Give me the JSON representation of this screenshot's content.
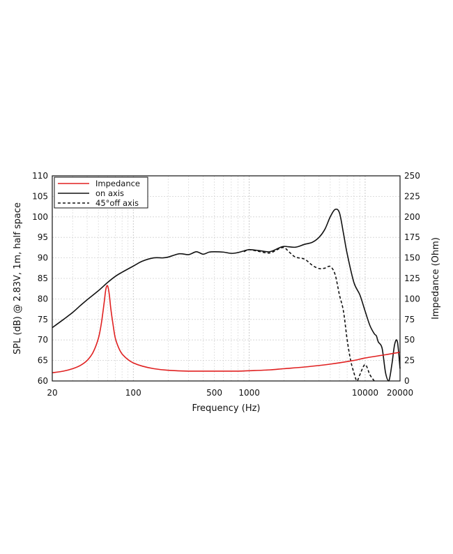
{
  "chart_data": {
    "type": "line",
    "title": "",
    "xlabel": "Frequency (Hz)",
    "ylabel_left": "SPL (dB) @ 2.83V, 1m, half space",
    "ylabel_right": "Impedance (Ohm)",
    "x_scale": "log",
    "xlim": [
      20,
      20000
    ],
    "ylim_left": [
      60,
      110
    ],
    "ylim_right": [
      0,
      250
    ],
    "x_tick_labels": [
      "20",
      "100",
      "500",
      "1000",
      "10000",
      "20000"
    ],
    "y_left_tick_labels": [
      "60",
      "65",
      "70",
      "75",
      "80",
      "85",
      "90",
      "95",
      "100",
      "105",
      "110"
    ],
    "y_right_tick_labels": [
      "0",
      "25",
      "50",
      "75",
      "100",
      "125",
      "150",
      "175",
      "200",
      "225",
      "250"
    ],
    "grid": true,
    "legend_position": "top-left",
    "series": [
      {
        "name": "Impedance",
        "axis": "right",
        "color": "#e02020",
        "style": "solid",
        "x": [
          20,
          25,
          30,
          35,
          40,
          45,
          50,
          53,
          56,
          58,
          60,
          62,
          64,
          67,
          70,
          75,
          80,
          90,
          100,
          120,
          150,
          200,
          300,
          500,
          800,
          1000,
          1500,
          2000,
          3000,
          5000,
          8000,
          10000,
          15000,
          20000
        ],
        "values": [
          10,
          12,
          15,
          19,
          25,
          35,
          52,
          70,
          95,
          112,
          116,
          106,
          88,
          68,
          52,
          40,
          33,
          26,
          22,
          18,
          15,
          13,
          12,
          12,
          12,
          12.5,
          13.5,
          15,
          17,
          20.5,
          25,
          28,
          32,
          35
        ]
      },
      {
        "name": "on axis",
        "axis": "left",
        "color": "#111111",
        "style": "solid",
        "x": [
          20,
          25,
          30,
          35,
          40,
          50,
          60,
          70,
          80,
          100,
          120,
          150,
          180,
          200,
          250,
          300,
          350,
          400,
          450,
          500,
          600,
          700,
          800,
          900,
          1000,
          1200,
          1500,
          1800,
          2000,
          2500,
          3000,
          3500,
          4000,
          4500,
          5000,
          5500,
          6000,
          6500,
          7000,
          8000,
          9000,
          10000,
          11000,
          12000,
          12500,
          13000,
          14000,
          15000,
          16000,
          17000,
          18000,
          19000,
          20000
        ],
        "values": [
          73,
          75,
          76.7,
          78.4,
          79.8,
          82,
          84,
          85.5,
          86.5,
          88,
          89.2,
          90,
          90,
          90.2,
          91,
          90.8,
          91.5,
          90.9,
          91.4,
          91.5,
          91.4,
          91.1,
          91.3,
          91.7,
          92,
          91.8,
          91.5,
          92.4,
          92.8,
          92.6,
          93.3,
          93.8,
          95,
          97,
          100,
          101.8,
          101,
          96,
          91,
          84,
          81,
          77,
          73.5,
          71.5,
          71,
          69.5,
          68,
          62,
          60,
          64,
          69,
          69.5,
          63
        ]
      },
      {
        "name": "45°off axis",
        "axis": "left",
        "color": "#111111",
        "style": "dashed",
        "x": [
          900,
          1000,
          1200,
          1500,
          1800,
          2000,
          2200,
          2500,
          3000,
          3500,
          4000,
          4500,
          5000,
          5500,
          6000,
          6500,
          7000,
          7500,
          8000,
          8500,
          9000,
          10000,
          11000,
          12000
        ],
        "values": [
          91.5,
          92,
          91.6,
          91.2,
          92.2,
          92.5,
          91.5,
          90.2,
          89.7,
          88.2,
          87.4,
          87.5,
          87.9,
          86,
          81,
          77,
          70,
          65,
          62,
          60,
          61.5,
          64,
          61.5,
          60
        ]
      }
    ]
  }
}
